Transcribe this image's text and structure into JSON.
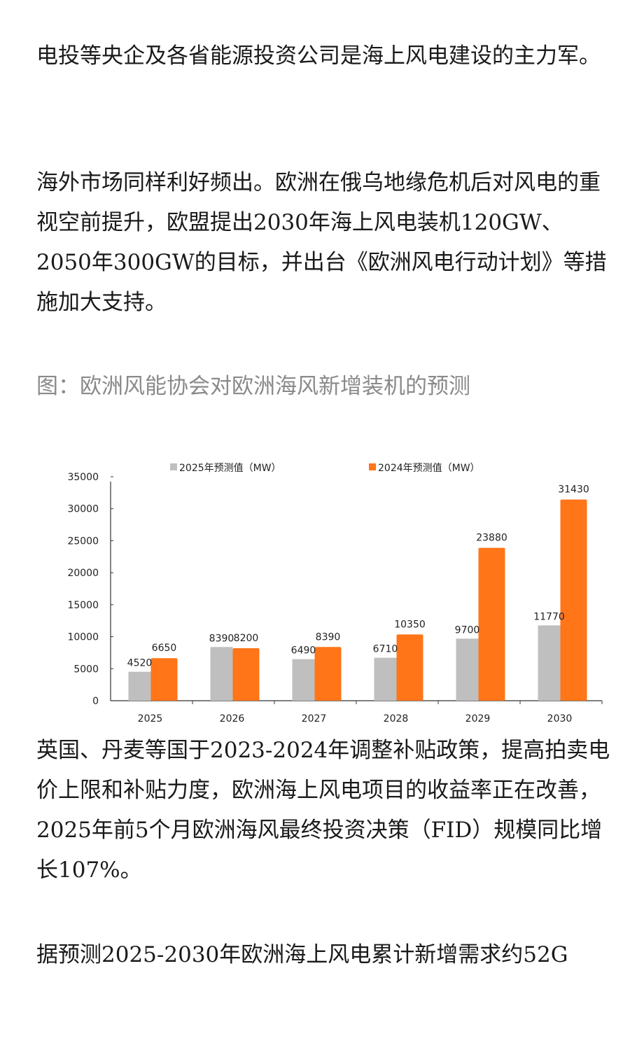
{
  "paragraphs": [
    "电投等央企及各省能源投资公司是海上风电建设的主力军。",
    "海外市场同样利好频出。欧洲在俄乌地缘危机后对风电的重视空前提升，欧盟提出2030年海上风电装机120GW、2050年300GW的目标，并出台《欧洲风电行动计划》等措施加大支持。",
    "英国、丹麦等国于2023-2024年调整补贴政策，提高拍卖电价上限和补贴力度，欧洲海上风电项目的收益率正在改善，2025年前5个月欧洲海风最终投资决策（FID）规模同比增长107%。",
    "据预测2025-2030年欧洲海上风电累计新增需求约52G"
  ],
  "figure": {
    "caption": "图：欧洲风能协会对欧洲海风新增装机的预测"
  },
  "colors": {
    "series_2025": "#bfbfbf",
    "series_2024": "#ff7518",
    "caption": "#8a8a8a"
  },
  "chart_data": {
    "type": "bar",
    "title": "",
    "xlabel": "",
    "ylabel": "",
    "categories": [
      "2025",
      "2026",
      "2027",
      "2028",
      "2029",
      "2030"
    ],
    "series": [
      {
        "name": "2025年预测值（MW）",
        "values": [
          4520,
          8390,
          6490,
          6710,
          9700,
          11770
        ],
        "color": "#bfbfbf"
      },
      {
        "name": "2024年预测值（MW）",
        "values": [
          6650,
          8200,
          8390,
          10350,
          23880,
          31430
        ],
        "color": "#ff7518"
      }
    ],
    "yticks": [
      0,
      5000,
      10000,
      15000,
      20000,
      25000,
      30000,
      35000
    ],
    "ylim": [
      0,
      35000
    ],
    "grid": false,
    "legend_position": "top",
    "data_labels": true
  }
}
